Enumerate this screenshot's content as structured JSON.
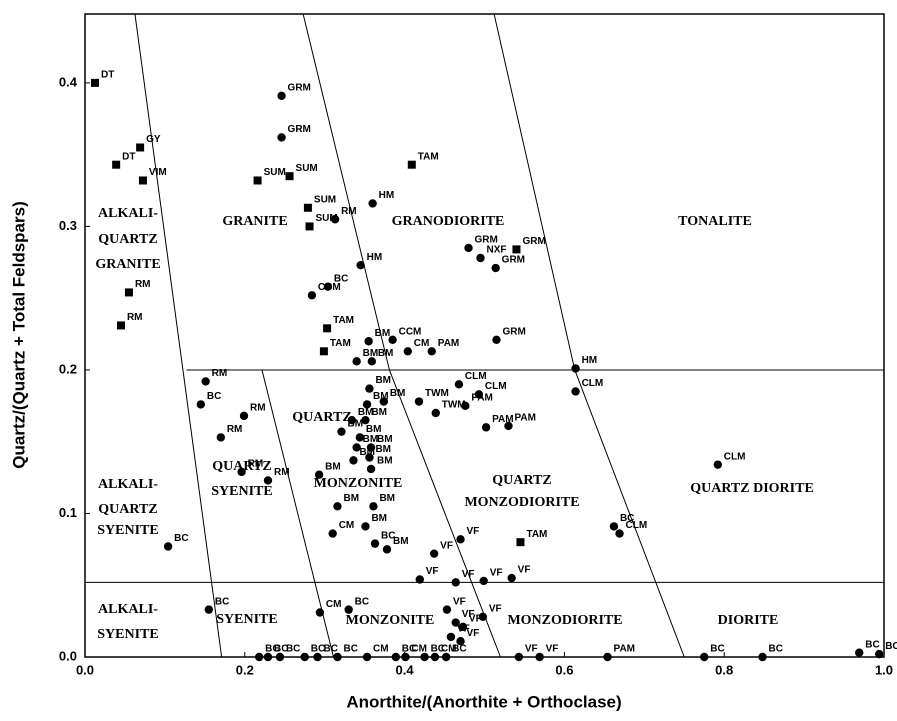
{
  "chart_data": {
    "type": "scatter",
    "x_label": "Anorthite/(Anorthite + Orthoclase)",
    "y_label": "Quartz/(Quartz + Total Feldspars)",
    "xlim": [
      0,
      1
    ],
    "ylim": [
      0,
      0.448
    ],
    "xticks": [
      {
        "value": 0,
        "label": "0.0"
      },
      0.2,
      0.4,
      0.6,
      0.8,
      {
        "value": 1,
        "label": "1.0"
      }
    ],
    "yticks": [
      {
        "value": 0,
        "label": "0.0"
      },
      0.1,
      0.2,
      0.3,
      0.4
    ],
    "boundaries": [
      {
        "x": [
          0.0625,
          0.171
        ],
        "y": [
          0.448,
          0
        ]
      },
      {
        "x": [
          0.2215,
          0.311
        ],
        "y": [
          0.2,
          0
        ]
      },
      {
        "x": [
          0.273,
          0.381,
          0.52
        ],
        "y": [
          0.448,
          0.2,
          0
        ]
      },
      {
        "x": [
          0.512,
          0.613,
          0.75
        ],
        "y": [
          0.448,
          0.2,
          0
        ]
      },
      {
        "x": [
          0.127,
          1
        ],
        "y": [
          0.2,
          0.2
        ]
      },
      {
        "x": [
          0,
          1
        ],
        "y": [
          0.052,
          0.052
        ]
      }
    ],
    "fields": [
      {
        "lines": [
          "ALKALI-",
          "QUARTZ",
          "GRANITE"
        ]
      },
      {
        "lines": [
          "GRANITE"
        ]
      },
      {
        "lines": [
          "GRANODIORITE"
        ]
      },
      {
        "lines": [
          "TONALITE"
        ]
      },
      {
        "lines": [
          "ALKALI-",
          "QUARTZ",
          "SYENITE"
        ]
      },
      {
        "lines": [
          "QUARTZ",
          "SYENITE"
        ]
      },
      {
        "lines": [
          "QUARTZ",
          "MONZONITE"
        ]
      },
      {
        "lines": [
          "QUARTZ",
          "MONZODIORITE"
        ]
      },
      {
        "lines": [
          "QUARTZ DIORITE"
        ]
      },
      {
        "lines": [
          "ALKALI-",
          "SYENITE"
        ]
      },
      {
        "lines": [
          "SYENITE"
        ]
      },
      {
        "lines": [
          "MONZONITE"
        ]
      },
      {
        "lines": [
          "MONZODIORITE"
        ]
      },
      {
        "lines": [
          "DIORITE"
        ]
      }
    ],
    "series": [
      {
        "marker": "square",
        "color": "#000000",
        "x": [
          0.0125,
          0.069,
          0.039,
          0.0725,
          0.055,
          0.045,
          0.216,
          0.256,
          0.279,
          0.281,
          0.409,
          0.54,
          0.303,
          0.299,
          0.545
        ],
        "y": [
          0.4,
          0.355,
          0.343,
          0.332,
          0.254,
          0.231,
          0.332,
          0.335,
          0.313,
          0.3,
          0.343,
          0.284,
          0.229,
          0.213,
          0.08
        ],
        "labels": [
          "DT",
          "GY",
          "DT",
          "VIM",
          "RM",
          "RM",
          "SUM",
          "SUM",
          "SUM",
          "SUM",
          "TAM",
          "GRM",
          "TAM",
          "TAM",
          "TAM"
        ]
      },
      {
        "marker": "circle",
        "color": "#000000",
        "x": [
          0.246,
          0.246,
          0.36,
          0.313,
          0.345,
          0.48,
          0.495,
          0.514,
          0.284,
          0.304,
          0.515,
          0.385,
          0.355,
          0.34,
          0.359,
          0.404,
          0.434,
          0.614,
          0.614,
          0.151,
          0.145,
          0.199,
          0.17,
          0.196,
          0.229,
          0.104,
          0.356,
          0.374,
          0.353,
          0.334,
          0.351,
          0.321,
          0.344,
          0.34,
          0.358,
          0.336,
          0.356,
          0.358,
          0.418,
          0.439,
          0.468,
          0.493,
          0.476,
          0.502,
          0.53,
          0.293,
          0.316,
          0.361,
          0.351,
          0.31,
          0.363,
          0.378,
          0.47,
          0.437,
          0.419,
          0.464,
          0.499,
          0.534,
          0.662,
          0.669,
          0.792,
          0.155,
          0.294,
          0.33,
          0.453,
          0.464,
          0.473,
          0.458,
          0.47,
          0.498,
          0.218,
          0.229,
          0.244,
          0.275,
          0.291,
          0.316,
          0.353,
          0.389,
          0.401,
          0.425,
          0.438,
          0.452,
          0.543,
          0.569,
          0.654,
          0.775,
          0.848,
          0.969,
          0.994
        ],
        "y": [
          0.391,
          0.362,
          0.316,
          0.305,
          0.273,
          0.285,
          0.278,
          0.271,
          0.252,
          0.258,
          0.221,
          0.221,
          0.22,
          0.206,
          0.206,
          0.213,
          0.213,
          0.201,
          0.185,
          0.192,
          0.176,
          0.168,
          0.153,
          0.129,
          0.123,
          0.077,
          0.187,
          0.178,
          0.176,
          0.165,
          0.165,
          0.157,
          0.153,
          0.146,
          0.146,
          0.137,
          0.139,
          0.131,
          0.178,
          0.17,
          0.19,
          0.183,
          0.175,
          0.16,
          0.161,
          0.127,
          0.105,
          0.105,
          0.091,
          0.086,
          0.079,
          0.075,
          0.082,
          0.072,
          0.054,
          0.052,
          0.053,
          0.055,
          0.091,
          0.086,
          0.134,
          0.033,
          0.031,
          0.033,
          0.033,
          0.024,
          0.021,
          0.014,
          0.011,
          0.028,
          0,
          0,
          0,
          0,
          0,
          0,
          0,
          0,
          0,
          0,
          0,
          0,
          0,
          0,
          0,
          0,
          0,
          0.003,
          0.002
        ],
        "labels": [
          "GRM",
          "GRM",
          "HM",
          "RM",
          "HM",
          "GRM",
          "NXF",
          "GRM",
          "CCM",
          "BC",
          "GRM",
          "CCM",
          "BM",
          "BM",
          "BM",
          "CM",
          "PAM",
          "HM",
          "CLM",
          "RM",
          "BC",
          "RM",
          "RM",
          "RM",
          "RM",
          "BC",
          "BM",
          "BM",
          "BM",
          "BM",
          "BM",
          "BM",
          "BM",
          "BM",
          "BM",
          "BM",
          "BM",
          "BM",
          "TWM",
          "TWM",
          "CLM",
          "CLM",
          "PAM",
          "PAM",
          "PAM",
          "BM",
          "BM",
          "BM",
          "BM",
          "CM",
          "BC",
          "BM",
          "VF",
          "VF",
          "VF",
          "VF",
          "VF",
          "VF",
          "BC",
          "CLM",
          "CLM",
          "BC",
          "CM",
          "BC",
          "VF",
          "VF",
          "VF",
          "VF",
          "VF",
          "VF",
          "BC",
          "BC",
          "BC",
          "BC",
          "BC",
          "BC",
          "CM",
          "BC",
          "CM",
          "BC",
          "CM",
          "BC",
          "VF",
          "VF",
          "PAM",
          "BC",
          "BC",
          "BC",
          "BC"
        ]
      }
    ]
  }
}
